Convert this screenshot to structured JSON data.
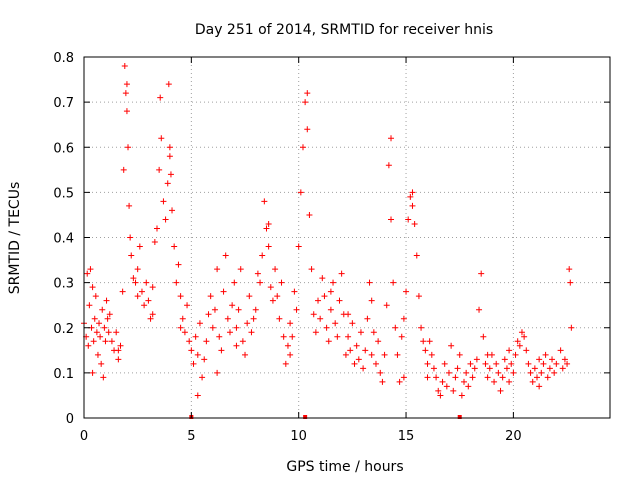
{
  "chart_data": {
    "type": "scatter",
    "title": "Day 251 of 2014, SRMTID for receiver hnis",
    "xlabel": "GPS time / hours",
    "ylabel": "SRMTID / TECUs",
    "xlim": [
      0,
      24.5
    ],
    "ylim": [
      0,
      0.8
    ],
    "xticks": [
      0,
      5,
      10,
      15,
      20
    ],
    "yticks": [
      0,
      0.1,
      0.2,
      0.3,
      0.4,
      0.5,
      0.6,
      0.7,
      0.8
    ],
    "xtick_labels": [
      "0",
      "5",
      "10",
      "15",
      "20"
    ],
    "ytick_labels": [
      "0",
      "0.1",
      "0.2",
      "0.3",
      "0.4",
      "0.5",
      "0.6",
      "0.7",
      "0.8"
    ],
    "grid": true,
    "marker": "+",
    "color": "#ff0000",
    "series": [
      {
        "name": "SRMTID",
        "points": [
          [
            0.0,
            0.21
          ],
          [
            0.1,
            0.18
          ],
          [
            0.15,
            0.32
          ],
          [
            0.2,
            0.16
          ],
          [
            0.25,
            0.25
          ],
          [
            0.3,
            0.33
          ],
          [
            0.35,
            0.2
          ],
          [
            0.4,
            0.29
          ],
          [
            0.45,
            0.17
          ],
          [
            0.5,
            0.22
          ],
          [
            0.55,
            0.27
          ],
          [
            0.6,
            0.19
          ],
          [
            0.65,
            0.14
          ],
          [
            0.7,
            0.21
          ],
          [
            0.75,
            0.18
          ],
          [
            0.8,
            0.12
          ],
          [
            0.85,
            0.24
          ],
          [
            0.9,
            0.09
          ],
          [
            0.95,
            0.2
          ],
          [
            1.0,
            0.17
          ],
          [
            1.05,
            0.26
          ],
          [
            1.1,
            0.22
          ],
          [
            1.15,
            0.19
          ],
          [
            1.2,
            0.23
          ],
          [
            1.3,
            0.17
          ],
          [
            1.4,
            0.15
          ],
          [
            1.5,
            0.19
          ],
          [
            1.6,
            0.13
          ],
          [
            1.7,
            0.16
          ],
          [
            1.8,
            0.28
          ],
          [
            1.85,
            0.55
          ],
          [
            1.9,
            0.78
          ],
          [
            1.95,
            0.72
          ],
          [
            2.0,
            0.68
          ],
          [
            2.05,
            0.6
          ],
          [
            2.1,
            0.47
          ],
          [
            2.15,
            0.4
          ],
          [
            2.2,
            0.36
          ],
          [
            2.3,
            0.31
          ],
          [
            2.4,
            0.3
          ],
          [
            2.5,
            0.33
          ],
          [
            2.6,
            0.38
          ],
          [
            2.7,
            0.28
          ],
          [
            2.8,
            0.25
          ],
          [
            2.9,
            0.3
          ],
          [
            3.0,
            0.26
          ],
          [
            3.1,
            0.22
          ],
          [
            3.2,
            0.29
          ],
          [
            3.3,
            0.39
          ],
          [
            3.4,
            0.42
          ],
          [
            3.5,
            0.55
          ],
          [
            3.55,
            0.71
          ],
          [
            3.6,
            0.62
          ],
          [
            3.7,
            0.48
          ],
          [
            3.8,
            0.44
          ],
          [
            3.9,
            0.52
          ],
          [
            3.95,
            0.74
          ],
          [
            4.0,
            0.6
          ],
          [
            4.05,
            0.54
          ],
          [
            4.1,
            0.46
          ],
          [
            4.2,
            0.38
          ],
          [
            4.3,
            0.3
          ],
          [
            4.4,
            0.34
          ],
          [
            4.5,
            0.27
          ],
          [
            4.6,
            0.22
          ],
          [
            4.7,
            0.19
          ],
          [
            4.8,
            0.25
          ],
          [
            4.9,
            0.17
          ],
          [
            5.0,
            0.15
          ],
          [
            5.1,
            0.12
          ],
          [
            5.2,
            0.18
          ],
          [
            5.3,
            0.14
          ],
          [
            5.4,
            0.21
          ],
          [
            5.5,
            0.09
          ],
          [
            5.6,
            0.13
          ],
          [
            5.7,
            0.17
          ],
          [
            5.8,
            0.23
          ],
          [
            5.9,
            0.27
          ],
          [
            6.0,
            0.2
          ],
          [
            6.1,
            0.24
          ],
          [
            6.2,
            0.33
          ],
          [
            6.3,
            0.18
          ],
          [
            6.4,
            0.15
          ],
          [
            6.5,
            0.28
          ],
          [
            6.6,
            0.36
          ],
          [
            6.7,
            0.22
          ],
          [
            6.8,
            0.19
          ],
          [
            6.9,
            0.25
          ],
          [
            7.0,
            0.3
          ],
          [
            7.1,
            0.2
          ],
          [
            7.2,
            0.24
          ],
          [
            7.3,
            0.33
          ],
          [
            7.4,
            0.17
          ],
          [
            7.5,
            0.14
          ],
          [
            7.6,
            0.21
          ],
          [
            7.7,
            0.27
          ],
          [
            7.8,
            0.19
          ],
          [
            7.9,
            0.22
          ],
          [
            8.0,
            0.24
          ],
          [
            8.1,
            0.32
          ],
          [
            8.2,
            0.3
          ],
          [
            8.3,
            0.36
          ],
          [
            8.4,
            0.48
          ],
          [
            8.5,
            0.42
          ],
          [
            8.6,
            0.38
          ],
          [
            8.7,
            0.29
          ],
          [
            8.8,
            0.26
          ],
          [
            8.9,
            0.33
          ],
          [
            9.0,
            0.27
          ],
          [
            9.1,
            0.22
          ],
          [
            9.2,
            0.3
          ],
          [
            9.3,
            0.18
          ],
          [
            9.4,
            0.12
          ],
          [
            9.5,
            0.16
          ],
          [
            9.6,
            0.21
          ],
          [
            9.7,
            0.18
          ],
          [
            9.8,
            0.28
          ],
          [
            9.9,
            0.24
          ],
          [
            10.0,
            0.38
          ],
          [
            10.1,
            0.5
          ],
          [
            10.2,
            0.6
          ],
          [
            10.3,
            0.7
          ],
          [
            10.4,
            0.64
          ],
          [
            10.5,
            0.45
          ],
          [
            10.6,
            0.33
          ],
          [
            10.7,
            0.23
          ],
          [
            10.8,
            0.19
          ],
          [
            10.9,
            0.26
          ],
          [
            11.0,
            0.22
          ],
          [
            11.1,
            0.31
          ],
          [
            11.2,
            0.27
          ],
          [
            11.3,
            0.2
          ],
          [
            11.4,
            0.17
          ],
          [
            11.5,
            0.24
          ],
          [
            11.6,
            0.3
          ],
          [
            11.7,
            0.21
          ],
          [
            11.8,
            0.18
          ],
          [
            11.9,
            0.26
          ],
          [
            12.0,
            0.32
          ],
          [
            12.1,
            0.23
          ],
          [
            12.2,
            0.14
          ],
          [
            12.3,
            0.18
          ],
          [
            12.4,
            0.15
          ],
          [
            12.5,
            0.21
          ],
          [
            12.6,
            0.12
          ],
          [
            12.7,
            0.16
          ],
          [
            12.8,
            0.13
          ],
          [
            12.9,
            0.19
          ],
          [
            13.0,
            0.11
          ],
          [
            13.1,
            0.15
          ],
          [
            13.2,
            0.22
          ],
          [
            13.3,
            0.3
          ],
          [
            13.4,
            0.26
          ],
          [
            13.5,
            0.19
          ],
          [
            13.6,
            0.12
          ],
          [
            13.7,
            0.17
          ],
          [
            13.8,
            0.1
          ],
          [
            13.9,
            0.08
          ],
          [
            14.0,
            0.14
          ],
          [
            14.1,
            0.25
          ],
          [
            14.2,
            0.56
          ],
          [
            14.3,
            0.44
          ],
          [
            14.4,
            0.3
          ],
          [
            14.5,
            0.2
          ],
          [
            14.6,
            0.14
          ],
          [
            14.7,
            0.08
          ],
          [
            14.8,
            0.18
          ],
          [
            14.9,
            0.22
          ],
          [
            15.0,
            0.28
          ],
          [
            15.1,
            0.44
          ],
          [
            15.2,
            0.49
          ],
          [
            15.3,
            0.47
          ],
          [
            15.4,
            0.43
          ],
          [
            15.5,
            0.36
          ],
          [
            15.6,
            0.27
          ],
          [
            15.7,
            0.2
          ],
          [
            15.8,
            0.17
          ],
          [
            15.9,
            0.15
          ],
          [
            16.0,
            0.12
          ],
          [
            16.1,
            0.17
          ],
          [
            16.2,
            0.14
          ],
          [
            16.3,
            0.11
          ],
          [
            16.4,
            0.09
          ],
          [
            16.5,
            0.06
          ],
          [
            16.6,
            0.05
          ],
          [
            16.7,
            0.08
          ],
          [
            16.8,
            0.12
          ],
          [
            16.9,
            0.07
          ],
          [
            17.0,
            0.1
          ],
          [
            17.1,
            0.16
          ],
          [
            17.2,
            0.06
          ],
          [
            17.3,
            0.09
          ],
          [
            17.4,
            0.11
          ],
          [
            17.5,
            0.14
          ],
          [
            17.6,
            0.05
          ],
          [
            17.7,
            0.08
          ],
          [
            17.8,
            0.1
          ],
          [
            17.9,
            0.07
          ],
          [
            18.0,
            0.12
          ],
          [
            18.1,
            0.09
          ],
          [
            18.2,
            0.11
          ],
          [
            18.3,
            0.13
          ],
          [
            18.4,
            0.24
          ],
          [
            18.5,
            0.32
          ],
          [
            18.6,
            0.18
          ],
          [
            18.7,
            0.12
          ],
          [
            18.8,
            0.09
          ],
          [
            18.9,
            0.11
          ],
          [
            19.0,
            0.14
          ],
          [
            19.1,
            0.08
          ],
          [
            19.2,
            0.12
          ],
          [
            19.3,
            0.1
          ],
          [
            19.4,
            0.06
          ],
          [
            19.5,
            0.09
          ],
          [
            19.6,
            0.13
          ],
          [
            19.7,
            0.11
          ],
          [
            19.8,
            0.15
          ],
          [
            19.9,
            0.12
          ],
          [
            20.0,
            0.1
          ],
          [
            20.1,
            0.14
          ],
          [
            20.2,
            0.17
          ],
          [
            20.3,
            0.16
          ],
          [
            20.4,
            0.19
          ],
          [
            20.5,
            0.18
          ],
          [
            20.6,
            0.15
          ],
          [
            20.7,
            0.12
          ],
          [
            20.8,
            0.1
          ],
          [
            20.9,
            0.08
          ],
          [
            21.0,
            0.11
          ],
          [
            21.1,
            0.09
          ],
          [
            21.2,
            0.13
          ],
          [
            21.3,
            0.1
          ],
          [
            21.4,
            0.12
          ],
          [
            21.5,
            0.14
          ],
          [
            21.6,
            0.09
          ],
          [
            21.7,
            0.11
          ],
          [
            21.8,
            0.13
          ],
          [
            21.9,
            0.1
          ],
          [
            22.0,
            0.12
          ],
          [
            22.2,
            0.15
          ],
          [
            22.3,
            0.11
          ],
          [
            22.4,
            0.13
          ],
          [
            22.5,
            0.12
          ],
          [
            22.6,
            0.33
          ],
          [
            22.65,
            0.3
          ],
          [
            22.7,
            0.2
          ],
          [
            0.4,
            0.1
          ],
          [
            1.6,
            0.15
          ],
          [
            2.5,
            0.27
          ],
          [
            3.2,
            0.23
          ],
          [
            4.5,
            0.2
          ],
          [
            6.2,
            0.1
          ],
          [
            7.1,
            0.16
          ],
          [
            9.6,
            0.14
          ],
          [
            11.5,
            0.28
          ],
          [
            12.3,
            0.23
          ],
          [
            13.4,
            0.14
          ],
          [
            14.9,
            0.09
          ],
          [
            16.0,
            0.09
          ],
          [
            18.8,
            0.14
          ],
          [
            19.8,
            0.08
          ],
          [
            21.2,
            0.07
          ],
          [
            14.3,
            0.62
          ],
          [
            15.3,
            0.5
          ],
          [
            8.6,
            0.43
          ],
          [
            4.0,
            0.58
          ],
          [
            5.3,
            0.05
          ],
          [
            10.4,
            0.72
          ],
          [
            2.0,
            0.74
          ]
        ]
      }
    ],
    "series_markers_on_axis": [
      5.0,
      10.3,
      17.5
    ]
  }
}
